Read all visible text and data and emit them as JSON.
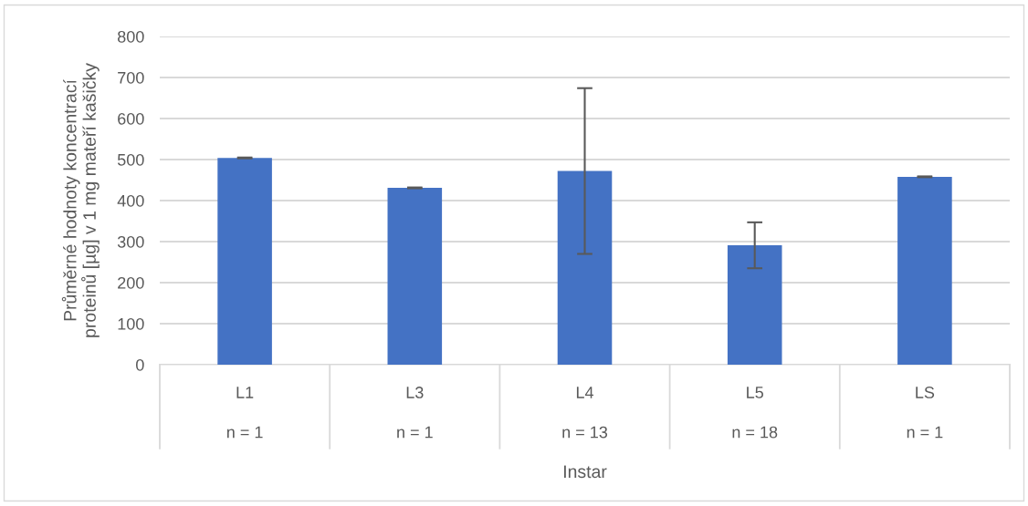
{
  "chart_data": {
    "type": "bar",
    "xlabel": "Instar",
    "ylabel": "Průměrné hodnoty koncentrací\nproteinů [µg] v 1 mg mateří kašičky",
    "categories": [
      "L1",
      "L3",
      "L4",
      "L5",
      "LS"
    ],
    "values": [
      504,
      431,
      472,
      291,
      458
    ],
    "errors": [
      1,
      1,
      202,
      56,
      1
    ],
    "color": "#4472c4",
    "annotations": [
      "n = 1",
      "n = 1",
      "n = 13",
      "n = 18",
      "n = 1"
    ],
    "ylim": [
      0,
      800
    ],
    "yticks": [
      0,
      100,
      200,
      300,
      400,
      500,
      600,
      700,
      800
    ],
    "grid": "y"
  }
}
